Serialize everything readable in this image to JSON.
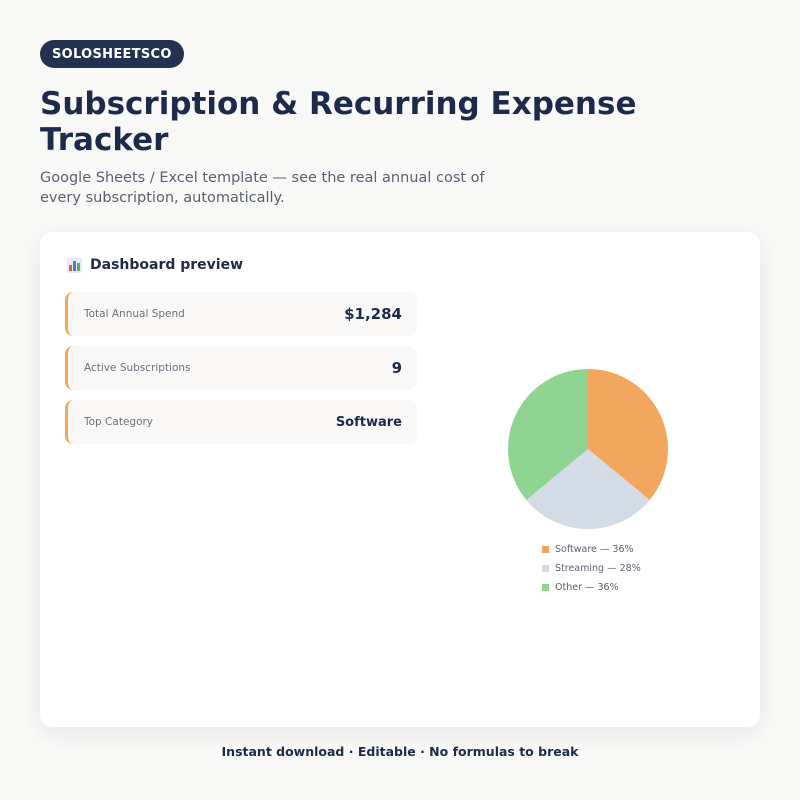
{
  "brand": {
    "name": "SOLOSHEETSCO"
  },
  "header": {
    "title": "Subscription & Recurring Expense Tracker",
    "subtitle": "Google Sheets / Excel template — see the real annual cost of every subscription, automatically."
  },
  "dashboard": {
    "heading_icon": "bar-chart-emoji",
    "heading": "Dashboard preview",
    "accent_color": "#f0a860",
    "kpis": [
      {
        "label": "Total Annual Spend",
        "value": "$1,284"
      },
      {
        "label": "Active Subscriptions",
        "value": "9"
      },
      {
        "label": "Top Category",
        "value": "Software"
      }
    ]
  },
  "chart_data": {
    "type": "pie",
    "categories": [
      "Software",
      "Streaming",
      "Other"
    ],
    "values": [
      36,
      28,
      36
    ],
    "colors": [
      "#f2a65e",
      "#d2dbe6",
      "#90d492"
    ],
    "legend_labels": [
      "Software — 36%",
      "Streaming — 28%",
      "Other — 36%"
    ],
    "legend_position": "bottom"
  },
  "footer": {
    "text": "Instant download · Editable · No formulas to break"
  }
}
